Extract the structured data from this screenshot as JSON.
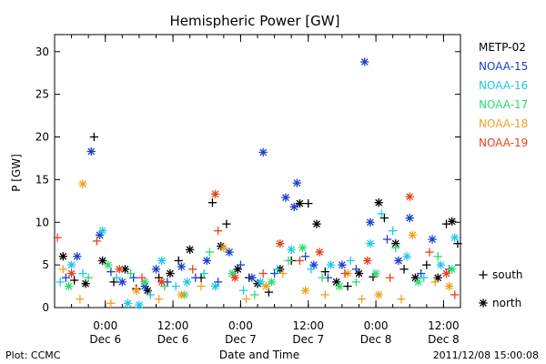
{
  "chart_data": {
    "type": "scatter",
    "title": "Hemispheric Power [GW]",
    "ylabel": "P [GW]",
    "xlabel": "Date and Time",
    "ylim": [
      0,
      32
    ],
    "yticks": [
      0,
      5,
      10,
      15,
      20,
      25,
      30
    ],
    "xlim": [
      "2011-12-05 15:00",
      "2011-12-08 15:00"
    ],
    "xticks": [
      {
        "t": "2011-12-06 00:00",
        "time": "0:00",
        "date": "Dec 6"
      },
      {
        "t": "2011-12-06 12:00",
        "time": "12:00",
        "date": "Dec 6"
      },
      {
        "t": "2011-12-07 00:00",
        "time": "0:00",
        "date": "Dec 7"
      },
      {
        "t": "2011-12-07 12:00",
        "time": "12:00",
        "date": "Dec 7"
      },
      {
        "t": "2011-12-08 00:00",
        "time": "0:00",
        "date": "Dec 8"
      },
      {
        "t": "2011-12-08 12:00",
        "time": "12:00",
        "date": "Dec 8"
      }
    ],
    "legend_position": "right",
    "markers": {
      "south": "+",
      "north": "*"
    },
    "marker_legend": {
      "south": "south",
      "north": "north"
    },
    "series": [
      {
        "name": "METP-02",
        "color": "#000000",
        "points": [
          {
            "t": "2011-12-05 16:30",
            "v": 6.0,
            "h": "north"
          },
          {
            "t": "2011-12-05 18:30",
            "v": 3.2,
            "h": "south"
          },
          {
            "t": "2011-12-05 20:30",
            "v": 2.8,
            "h": "north"
          },
          {
            "t": "2011-12-05 22:00",
            "v": 20.0,
            "h": "south"
          },
          {
            "t": "2011-12-05 23:30",
            "v": 5.5,
            "h": "north"
          },
          {
            "t": "2011-12-06 01:30",
            "v": 3.0,
            "h": "south"
          },
          {
            "t": "2011-12-06 03:30",
            "v": 4.5,
            "h": "north"
          },
          {
            "t": "2011-12-06 05:30",
            "v": 2.2,
            "h": "south"
          },
          {
            "t": "2011-12-06 07:30",
            "v": 2.0,
            "h": "north"
          },
          {
            "t": "2011-12-06 09:30",
            "v": 3.5,
            "h": "south"
          },
          {
            "t": "2011-12-06 11:30",
            "v": 4.0,
            "h": "north"
          },
          {
            "t": "2011-12-06 13:00",
            "v": 5.5,
            "h": "south"
          },
          {
            "t": "2011-12-06 15:00",
            "v": 6.8,
            "h": "north"
          },
          {
            "t": "2011-12-06 17:00",
            "v": 3.5,
            "h": "south"
          },
          {
            "t": "2011-12-06 19:00",
            "v": 12.3,
            "h": "south"
          },
          {
            "t": "2011-12-06 20:30",
            "v": 7.2,
            "h": "north"
          },
          {
            "t": "2011-12-06 21:30",
            "v": 9.8,
            "h": "south"
          },
          {
            "t": "2011-12-06 23:30",
            "v": 4.5,
            "h": "north"
          },
          {
            "t": "2011-12-07 01:30",
            "v": 3.5,
            "h": "south"
          },
          {
            "t": "2011-12-07 03:00",
            "v": 2.8,
            "h": "north"
          },
          {
            "t": "2011-12-07 05:00",
            "v": 1.8,
            "h": "south"
          },
          {
            "t": "2011-12-07 07:00",
            "v": 4.5,
            "h": "north"
          },
          {
            "t": "2011-12-07 09:00",
            "v": 5.5,
            "h": "south"
          },
          {
            "t": "2011-12-07 10:30",
            "v": 12.2,
            "h": "north"
          },
          {
            "t": "2011-12-07 12:00",
            "v": 12.2,
            "h": "south"
          },
          {
            "t": "2011-12-07 13:30",
            "v": 9.8,
            "h": "north"
          },
          {
            "t": "2011-12-07 15:00",
            "v": 4.2,
            "h": "south"
          },
          {
            "t": "2011-12-07 17:00",
            "v": 3.0,
            "h": "north"
          },
          {
            "t": "2011-12-07 19:00",
            "v": 2.5,
            "h": "south"
          },
          {
            "t": "2011-12-07 21:00",
            "v": 4.0,
            "h": "north"
          },
          {
            "t": "2011-12-07 23:30",
            "v": 3.6,
            "h": "south"
          },
          {
            "t": "2011-12-08 00:30",
            "v": 12.3,
            "h": "north"
          },
          {
            "t": "2011-12-08 01:30",
            "v": 10.5,
            "h": "south"
          },
          {
            "t": "2011-12-08 03:30",
            "v": 7.5,
            "h": "north"
          },
          {
            "t": "2011-12-08 05:00",
            "v": 4.5,
            "h": "south"
          },
          {
            "t": "2011-12-08 07:00",
            "v": 3.5,
            "h": "north"
          },
          {
            "t": "2011-12-08 09:00",
            "v": 5.0,
            "h": "south"
          },
          {
            "t": "2011-12-08 11:00",
            "v": 3.5,
            "h": "north"
          },
          {
            "t": "2011-12-08 12:30",
            "v": 9.8,
            "h": "south"
          },
          {
            "t": "2011-12-08 13:30",
            "v": 10.1,
            "h": "north"
          },
          {
            "t": "2011-12-08 14:30",
            "v": 7.5,
            "h": "south"
          }
        ]
      },
      {
        "name": "NOAA-15",
        "color": "#1a3fcc",
        "points": [
          {
            "t": "2011-12-05 17:00",
            "v": 3.5,
            "h": "south"
          },
          {
            "t": "2011-12-05 19:00",
            "v": 6.0,
            "h": "north"
          },
          {
            "t": "2011-12-05 21:30",
            "v": 18.3,
            "h": "north"
          },
          {
            "t": "2011-12-05 23:00",
            "v": 8.5,
            "h": "north"
          },
          {
            "t": "2011-12-06 01:00",
            "v": 4.2,
            "h": "south"
          },
          {
            "t": "2011-12-06 03:00",
            "v": 3.0,
            "h": "north"
          },
          {
            "t": "2011-12-06 05:00",
            "v": 3.5,
            "h": "south"
          },
          {
            "t": "2011-12-06 07:00",
            "v": 2.5,
            "h": "north"
          },
          {
            "t": "2011-12-06 09:00",
            "v": 4.5,
            "h": "north"
          },
          {
            "t": "2011-12-06 11:00",
            "v": 3.0,
            "h": "south"
          },
          {
            "t": "2011-12-06 13:30",
            "v": 4.8,
            "h": "north"
          },
          {
            "t": "2011-12-06 16:00",
            "v": 3.5,
            "h": "south"
          },
          {
            "t": "2011-12-06 18:00",
            "v": 5.5,
            "h": "north"
          },
          {
            "t": "2011-12-06 20:00",
            "v": 3.0,
            "h": "south"
          },
          {
            "t": "2011-12-06 22:00",
            "v": 6.5,
            "h": "north"
          },
          {
            "t": "2011-12-07 00:00",
            "v": 5.0,
            "h": "south"
          },
          {
            "t": "2011-12-07 02:00",
            "v": 3.5,
            "h": "north"
          },
          {
            "t": "2011-12-07 04:00",
            "v": 18.2,
            "h": "north"
          },
          {
            "t": "2011-12-07 06:00",
            "v": 4.0,
            "h": "south"
          },
          {
            "t": "2011-12-07 08:00",
            "v": 12.9,
            "h": "north"
          },
          {
            "t": "2011-12-07 09:30",
            "v": 11.8,
            "h": "north"
          },
          {
            "t": "2011-12-07 10:00",
            "v": 14.6,
            "h": "north"
          },
          {
            "t": "2011-12-07 11:30",
            "v": 6.0,
            "h": "south"
          },
          {
            "t": "2011-12-07 13:00",
            "v": 5.0,
            "h": "north"
          },
          {
            "t": "2011-12-07 15:30",
            "v": 3.5,
            "h": "south"
          },
          {
            "t": "2011-12-07 18:00",
            "v": 5.0,
            "h": "north"
          },
          {
            "t": "2011-12-07 20:30",
            "v": 4.5,
            "h": "south"
          },
          {
            "t": "2011-12-07 22:00",
            "v": 28.8,
            "h": "north"
          },
          {
            "t": "2011-12-07 23:00",
            "v": 10.0,
            "h": "north"
          },
          {
            "t": "2011-12-08 02:00",
            "v": 8.0,
            "h": "south"
          },
          {
            "t": "2011-12-08 04:00",
            "v": 5.5,
            "h": "north"
          },
          {
            "t": "2011-12-08 06:00",
            "v": 10.5,
            "h": "north"
          },
          {
            "t": "2011-12-08 08:00",
            "v": 4.0,
            "h": "south"
          },
          {
            "t": "2011-12-08 10:00",
            "v": 8.0,
            "h": "north"
          },
          {
            "t": "2011-12-08 13:00",
            "v": 4.5,
            "h": "south"
          }
        ]
      },
      {
        "name": "NOAA-16",
        "color": "#1ec8e6",
        "points": [
          {
            "t": "2011-12-05 16:00",
            "v": 3.0,
            "h": "south"
          },
          {
            "t": "2011-12-05 18:00",
            "v": 5.0,
            "h": "north"
          },
          {
            "t": "2011-12-05 20:00",
            "v": 4.0,
            "h": "south"
          },
          {
            "t": "2011-12-05 23:30",
            "v": 9.0,
            "h": "north"
          },
          {
            "t": "2011-12-06 02:00",
            "v": 3.5,
            "h": "south"
          },
          {
            "t": "2011-12-06 04:00",
            "v": 0.5,
            "h": "north"
          },
          {
            "t": "2011-12-06 06:00",
            "v": 0.3,
            "h": "north"
          },
          {
            "t": "2011-12-06 08:00",
            "v": 1.5,
            "h": "south"
          },
          {
            "t": "2011-12-06 10:00",
            "v": 5.5,
            "h": "north"
          },
          {
            "t": "2011-12-06 12:30",
            "v": 2.5,
            "h": "south"
          },
          {
            "t": "2011-12-06 14:30",
            "v": 3.0,
            "h": "north"
          },
          {
            "t": "2011-12-06 17:30",
            "v": 4.0,
            "h": "south"
          },
          {
            "t": "2011-12-06 19:30",
            "v": 2.5,
            "h": "north"
          },
          {
            "t": "2011-12-07 00:30",
            "v": 2.0,
            "h": "south"
          },
          {
            "t": "2011-12-07 03:30",
            "v": 3.0,
            "h": "north"
          },
          {
            "t": "2011-12-07 06:30",
            "v": 4.5,
            "h": "south"
          },
          {
            "t": "2011-12-07 09:00",
            "v": 6.8,
            "h": "north"
          },
          {
            "t": "2011-12-07 12:30",
            "v": 4.5,
            "h": "south"
          },
          {
            "t": "2011-12-07 16:00",
            "v": 5.0,
            "h": "north"
          },
          {
            "t": "2011-12-07 19:30",
            "v": 5.5,
            "h": "south"
          },
          {
            "t": "2011-12-07 23:00",
            "v": 7.5,
            "h": "north"
          },
          {
            "t": "2011-12-08 01:00",
            "v": 11.0,
            "h": "south"
          },
          {
            "t": "2011-12-08 03:00",
            "v": 9.0,
            "h": "south"
          },
          {
            "t": "2011-12-08 05:30",
            "v": 6.0,
            "h": "north"
          },
          {
            "t": "2011-12-08 08:30",
            "v": 3.5,
            "h": "south"
          },
          {
            "t": "2011-12-08 11:30",
            "v": 5.0,
            "h": "north"
          },
          {
            "t": "2011-12-08 14:00",
            "v": 8.2,
            "h": "north"
          }
        ]
      },
      {
        "name": "NOAA-17",
        "color": "#2bdc6e",
        "points": [
          {
            "t": "2011-12-05 17:30",
            "v": 2.5,
            "h": "north"
          },
          {
            "t": "2011-12-05 21:00",
            "v": 3.5,
            "h": "south"
          },
          {
            "t": "2011-12-06 00:30",
            "v": 5.0,
            "h": "north"
          },
          {
            "t": "2011-12-06 04:30",
            "v": 4.0,
            "h": "south"
          },
          {
            "t": "2011-12-06 07:00",
            "v": 3.0,
            "h": "north"
          },
          {
            "t": "2011-12-06 10:30",
            "v": 2.5,
            "h": "south"
          },
          {
            "t": "2011-12-06 14:00",
            "v": 1.5,
            "h": "north"
          },
          {
            "t": "2011-12-06 18:30",
            "v": 6.5,
            "h": "south"
          },
          {
            "t": "2011-12-06 22:30",
            "v": 4.0,
            "h": "north"
          },
          {
            "t": "2011-12-07 02:30",
            "v": 1.5,
            "h": "south"
          },
          {
            "t": "2011-12-07 05:30",
            "v": 3.0,
            "h": "north"
          },
          {
            "t": "2011-12-07 08:30",
            "v": 5.5,
            "h": "south"
          },
          {
            "t": "2011-12-07 11:00",
            "v": 7.0,
            "h": "north"
          },
          {
            "t": "2011-12-07 14:30",
            "v": 3.5,
            "h": "south"
          },
          {
            "t": "2011-12-07 17:30",
            "v": 2.5,
            "h": "north"
          },
          {
            "t": "2011-12-07 20:30",
            "v": 3.0,
            "h": "south"
          },
          {
            "t": "2011-12-08 00:00",
            "v": 4.0,
            "h": "north"
          },
          {
            "t": "2011-12-08 03:30",
            "v": 7.0,
            "h": "south"
          },
          {
            "t": "2011-12-08 07:30",
            "v": 3.0,
            "h": "north"
          },
          {
            "t": "2011-12-08 11:00",
            "v": 6.0,
            "h": "south"
          },
          {
            "t": "2011-12-08 13:30",
            "v": 4.5,
            "h": "north"
          }
        ]
      },
      {
        "name": "NOAA-18",
        "color": "#f0a020",
        "points": [
          {
            "t": "2011-12-05 16:30",
            "v": 4.5,
            "h": "south"
          },
          {
            "t": "2011-12-05 19:30",
            "v": 1.0,
            "h": "south"
          },
          {
            "t": "2011-12-05 20:00",
            "v": 14.5,
            "h": "north"
          },
          {
            "t": "2011-12-06 01:00",
            "v": 0.5,
            "h": "south"
          },
          {
            "t": "2011-12-06 05:30",
            "v": 2.0,
            "h": "north"
          },
          {
            "t": "2011-12-06 09:30",
            "v": 1.0,
            "h": "south"
          },
          {
            "t": "2011-12-06 13:30",
            "v": 1.5,
            "h": "north"
          },
          {
            "t": "2011-12-06 17:00",
            "v": 2.5,
            "h": "south"
          },
          {
            "t": "2011-12-06 21:00",
            "v": 7.0,
            "h": "north"
          },
          {
            "t": "2011-12-07 01:00",
            "v": 1.0,
            "h": "south"
          },
          {
            "t": "2011-12-07 04:30",
            "v": 2.5,
            "h": "north"
          },
          {
            "t": "2011-12-07 07:30",
            "v": 4.0,
            "h": "south"
          },
          {
            "t": "2011-12-07 11:30",
            "v": 2.0,
            "h": "north"
          },
          {
            "t": "2011-12-07 15:00",
            "v": 1.5,
            "h": "south"
          },
          {
            "t": "2011-12-07 19:00",
            "v": 4.0,
            "h": "north"
          },
          {
            "t": "2011-12-07 21:30",
            "v": 1.0,
            "h": "south"
          },
          {
            "t": "2011-12-08 00:30",
            "v": 1.5,
            "h": "north"
          },
          {
            "t": "2011-12-08 04:30",
            "v": 1.0,
            "h": "south"
          },
          {
            "t": "2011-12-08 06:30",
            "v": 8.5,
            "h": "north"
          },
          {
            "t": "2011-12-08 10:30",
            "v": 3.0,
            "h": "south"
          },
          {
            "t": "2011-12-08 13:00",
            "v": 2.5,
            "h": "north"
          }
        ]
      },
      {
        "name": "NOAA-19",
        "color": "#e8401c",
        "points": [
          {
            "t": "2011-12-05 15:30",
            "v": 8.2,
            "h": "south"
          },
          {
            "t": "2011-12-05 18:00",
            "v": 4.0,
            "h": "north"
          },
          {
            "t": "2011-12-05 22:30",
            "v": 7.8,
            "h": "south"
          },
          {
            "t": "2011-12-06 02:30",
            "v": 4.5,
            "h": "north"
          },
          {
            "t": "2011-12-06 06:30",
            "v": 3.5,
            "h": "south"
          },
          {
            "t": "2011-12-06 10:00",
            "v": 3.0,
            "h": "north"
          },
          {
            "t": "2011-12-06 15:30",
            "v": 4.5,
            "h": "south"
          },
          {
            "t": "2011-12-06 19:30",
            "v": 13.3,
            "h": "north"
          },
          {
            "t": "2011-12-06 20:00",
            "v": 9.0,
            "h": "south"
          },
          {
            "t": "2011-12-06 23:00",
            "v": 3.5,
            "h": "north"
          },
          {
            "t": "2011-12-07 04:00",
            "v": 4.0,
            "h": "south"
          },
          {
            "t": "2011-12-07 07:00",
            "v": 7.5,
            "h": "north"
          },
          {
            "t": "2011-12-07 10:30",
            "v": 5.5,
            "h": "south"
          },
          {
            "t": "2011-12-07 14:00",
            "v": 6.5,
            "h": "north"
          },
          {
            "t": "2011-12-07 18:30",
            "v": 4.0,
            "h": "south"
          },
          {
            "t": "2011-12-07 22:30",
            "v": 5.5,
            "h": "north"
          },
          {
            "t": "2011-12-08 02:30",
            "v": 3.5,
            "h": "south"
          },
          {
            "t": "2011-12-08 06:00",
            "v": 13.0,
            "h": "north"
          },
          {
            "t": "2011-12-08 09:30",
            "v": 6.5,
            "h": "south"
          },
          {
            "t": "2011-12-08 12:30",
            "v": 4.0,
            "h": "north"
          },
          {
            "t": "2011-12-08 14:00",
            "v": 1.5,
            "h": "south"
          }
        ]
      }
    ]
  },
  "footer": {
    "left": "Plot: CCMC",
    "right": "2011/12/08 15:00:08"
  }
}
